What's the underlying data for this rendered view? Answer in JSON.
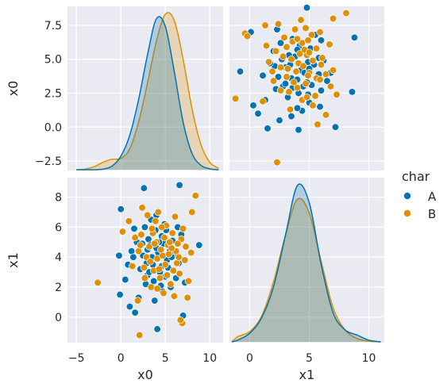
{
  "chart_data": {
    "type": "scatter",
    "layout": "pairgrid",
    "variables": [
      "x0",
      "x1"
    ],
    "xlabels": [
      "x0",
      "x1"
    ],
    "ylabels": [
      "x0",
      "x1"
    ],
    "x_ticks": {
      "x0": [
        -5,
        0,
        5,
        10
      ],
      "x1": [
        0,
        5,
        10
      ]
    },
    "y_ticks": {
      "x0": [
        -2.5,
        0.0,
        2.5,
        5.0,
        7.5
      ],
      "x1": [
        0,
        2,
        4,
        6,
        8
      ]
    },
    "x_tick_labels": {
      "x0": [
        "−5",
        "0",
        "5",
        "10"
      ],
      "x1": [
        "0",
        "5",
        "10"
      ]
    },
    "y_tick_labels": {
      "x0": [
        "−2.5",
        "0.0",
        "2.5",
        "5.0",
        "7.5"
      ],
      "x1": [
        "0",
        "2",
        "4",
        "6",
        "8"
      ]
    },
    "axis_ranges": {
      "x0": [
        -6.0,
        11.5
      ],
      "x1": [
        -1.7,
        11.3
      ]
    },
    "y_ranges": {
      "x0": [
        -3.2,
        8.9
      ],
      "x1": [
        -1.7,
        9.3
      ]
    },
    "grid": true,
    "legend": {
      "title": "char",
      "placement": "center-right",
      "entries": [
        {
          "label": "A",
          "color": "#0173b2"
        },
        {
          "label": "B",
          "color": "#de8f05"
        }
      ]
    },
    "series": [
      {
        "name": "A",
        "color": "#0173b2",
        "points": [
          [
            4.2,
            4.3
          ],
          [
            3.1,
            5.2
          ],
          [
            4.0,
            4.6
          ],
          [
            5.2,
            3.8
          ],
          [
            3.6,
            3.5
          ],
          [
            4.8,
            4.9
          ],
          [
            2.5,
            4.1
          ],
          [
            4.4,
            3.0
          ],
          [
            3.9,
            5.8
          ],
          [
            5.5,
            4.4
          ],
          [
            2.9,
            3.6
          ],
          [
            4.6,
            5.4
          ],
          [
            3.3,
            4.8
          ],
          [
            5.0,
            2.7
          ],
          [
            4.1,
            3.9
          ],
          [
            6.0,
            4.2
          ],
          [
            1.8,
            5.0
          ],
          [
            3.7,
            2.4
          ],
          [
            4.9,
            6.2
          ],
          [
            2.2,
            3.2
          ],
          [
            5.8,
            5.1
          ],
          [
            3.4,
            6.5
          ],
          [
            4.5,
            2.1
          ],
          [
            1.2,
            4.4
          ],
          [
            6.5,
            3.6
          ],
          [
            0.0,
            7.2
          ],
          [
            8.8,
            4.8
          ],
          [
            -0.1,
            1.5
          ],
          [
            1.0,
            0.7
          ],
          [
            1.6,
            0.3
          ],
          [
            2.6,
            8.6
          ],
          [
            6.6,
            8.8
          ],
          [
            7.2,
            2.3
          ],
          [
            4.1,
            -0.8
          ],
          [
            2.0,
            1.3
          ],
          [
            3.0,
            2.8
          ],
          [
            5.6,
            2.0
          ],
          [
            4.7,
            1.7
          ],
          [
            2.7,
            6.0
          ],
          [
            0.8,
            3.5
          ],
          [
            5.1,
            5.8
          ],
          [
            3.8,
            1.1
          ],
          [
            6.2,
            2.6
          ],
          [
            2.4,
            4.9
          ],
          [
            4.3,
            5.0
          ],
          [
            1.4,
            4.0
          ],
          [
            5.3,
            3.3
          ],
          [
            3.2,
            3.0
          ],
          [
            6.8,
            5.5
          ],
          [
            2.8,
            2.2
          ],
          [
            4.0,
            6.8
          ],
          [
            5.7,
            4.0
          ],
          [
            3.5,
            4.0
          ],
          [
            1.5,
            5.9
          ],
          [
            7.0,
            0.1
          ],
          [
            -0.2,
            4.1
          ],
          [
            0.5,
            2.5
          ],
          [
            6.4,
            6.0
          ],
          [
            3.0,
            4.5
          ],
          [
            4.6,
            3.4
          ]
        ]
      },
      {
        "name": "B",
        "color": "#de8f05",
        "points": [
          [
            5.3,
            4.8
          ],
          [
            4.1,
            3.9
          ],
          [
            6.2,
            4.4
          ],
          [
            3.6,
            5.6
          ],
          [
            5.9,
            3.1
          ],
          [
            4.7,
            4.1
          ],
          [
            3.2,
            4.7
          ],
          [
            6.8,
            5.2
          ],
          [
            4.4,
            2.6
          ],
          [
            5.1,
            6.1
          ],
          [
            2.6,
            3.3
          ],
          [
            7.2,
            3.8
          ],
          [
            3.9,
            6.4
          ],
          [
            5.6,
            2.2
          ],
          [
            4.0,
            5.0
          ],
          [
            6.4,
            4.9
          ],
          [
            2.3,
            5.5
          ],
          [
            5.0,
            3.5
          ],
          [
            7.6,
            2.4
          ],
          [
            3.4,
            2.0
          ],
          [
            6.1,
            6.7
          ],
          [
            4.8,
            1.6
          ],
          [
            2.0,
            4.4
          ],
          [
            7.9,
            4.3
          ],
          [
            -2.6,
            2.3
          ],
          [
            2.1,
            -1.2
          ],
          [
            8.4,
            8.1
          ],
          [
            0.9,
            6.4
          ],
          [
            1.6,
            5.3
          ],
          [
            2.4,
            7.3
          ],
          [
            6.9,
            -0.4
          ],
          [
            7.5,
            1.3
          ],
          [
            3.0,
            6.8
          ],
          [
            4.5,
            4.5
          ],
          [
            5.8,
            5.6
          ],
          [
            3.7,
            3.1
          ],
          [
            6.6,
            2.9
          ],
          [
            4.2,
            7.0
          ],
          [
            5.4,
            4.2
          ],
          [
            2.9,
            4.0
          ],
          [
            6.0,
            1.4
          ],
          [
            4.9,
            5.3
          ],
          [
            3.3,
            3.7
          ],
          [
            7.0,
            5.9
          ],
          [
            1.3,
            3.4
          ],
          [
            5.2,
            2.8
          ],
          [
            4.3,
            3.2
          ],
          [
            6.3,
            3.6
          ],
          [
            2.7,
            2.6
          ],
          [
            5.7,
            4.6
          ],
          [
            3.8,
            4.9
          ],
          [
            4.6,
            6.0
          ],
          [
            7.3,
            4.7
          ],
          [
            1.9,
            1.1
          ],
          [
            6.7,
            -0.2
          ],
          [
            4.1,
            1.9
          ],
          [
            5.5,
            5.0
          ],
          [
            2.2,
            4.8
          ],
          [
            6.5,
            4.0
          ],
          [
            3.5,
            5.9
          ],
          [
            8.0,
            7.0
          ],
          [
            0.2,
            5.7
          ]
        ]
      }
    ],
    "kde_diagonal": {
      "x0": {
        "grid": [
          -5.0,
          -4.0,
          -3.0,
          -2.0,
          -1.0,
          0.0,
          1.0,
          2.0,
          3.0,
          4.0,
          5.0,
          6.0,
          7.0,
          8.0,
          9.0,
          10.0,
          11.0
        ],
        "A": [
          0.0,
          0.0,
          0.0,
          0.02,
          0.12,
          0.45,
          1.15,
          2.35,
          3.85,
          5.05,
          4.8,
          3.3,
          1.6,
          0.55,
          0.15,
          0.03,
          0.0
        ],
        "B": [
          0.0,
          0.02,
          0.1,
          0.25,
          0.35,
          0.38,
          0.7,
          1.6,
          2.9,
          4.3,
          5.2,
          5.0,
          3.7,
          2.05,
          0.85,
          0.25,
          0.05
        ]
      },
      "x1": {
        "grid": [
          -1.5,
          -1.0,
          0.0,
          1.0,
          2.0,
          3.0,
          4.0,
          5.0,
          6.0,
          7.0,
          8.0,
          9.0,
          10.0,
          11.0
        ],
        "A": [
          0.0,
          0.05,
          0.25,
          0.7,
          1.6,
          3.1,
          4.55,
          4.05,
          2.25,
          0.85,
          0.35,
          0.2,
          0.05,
          0.0
        ],
        "B": [
          0.0,
          0.15,
          0.3,
          0.75,
          1.75,
          3.1,
          4.15,
          3.75,
          2.35,
          1.0,
          0.35,
          0.1,
          0.02,
          0.0
        ]
      }
    }
  }
}
